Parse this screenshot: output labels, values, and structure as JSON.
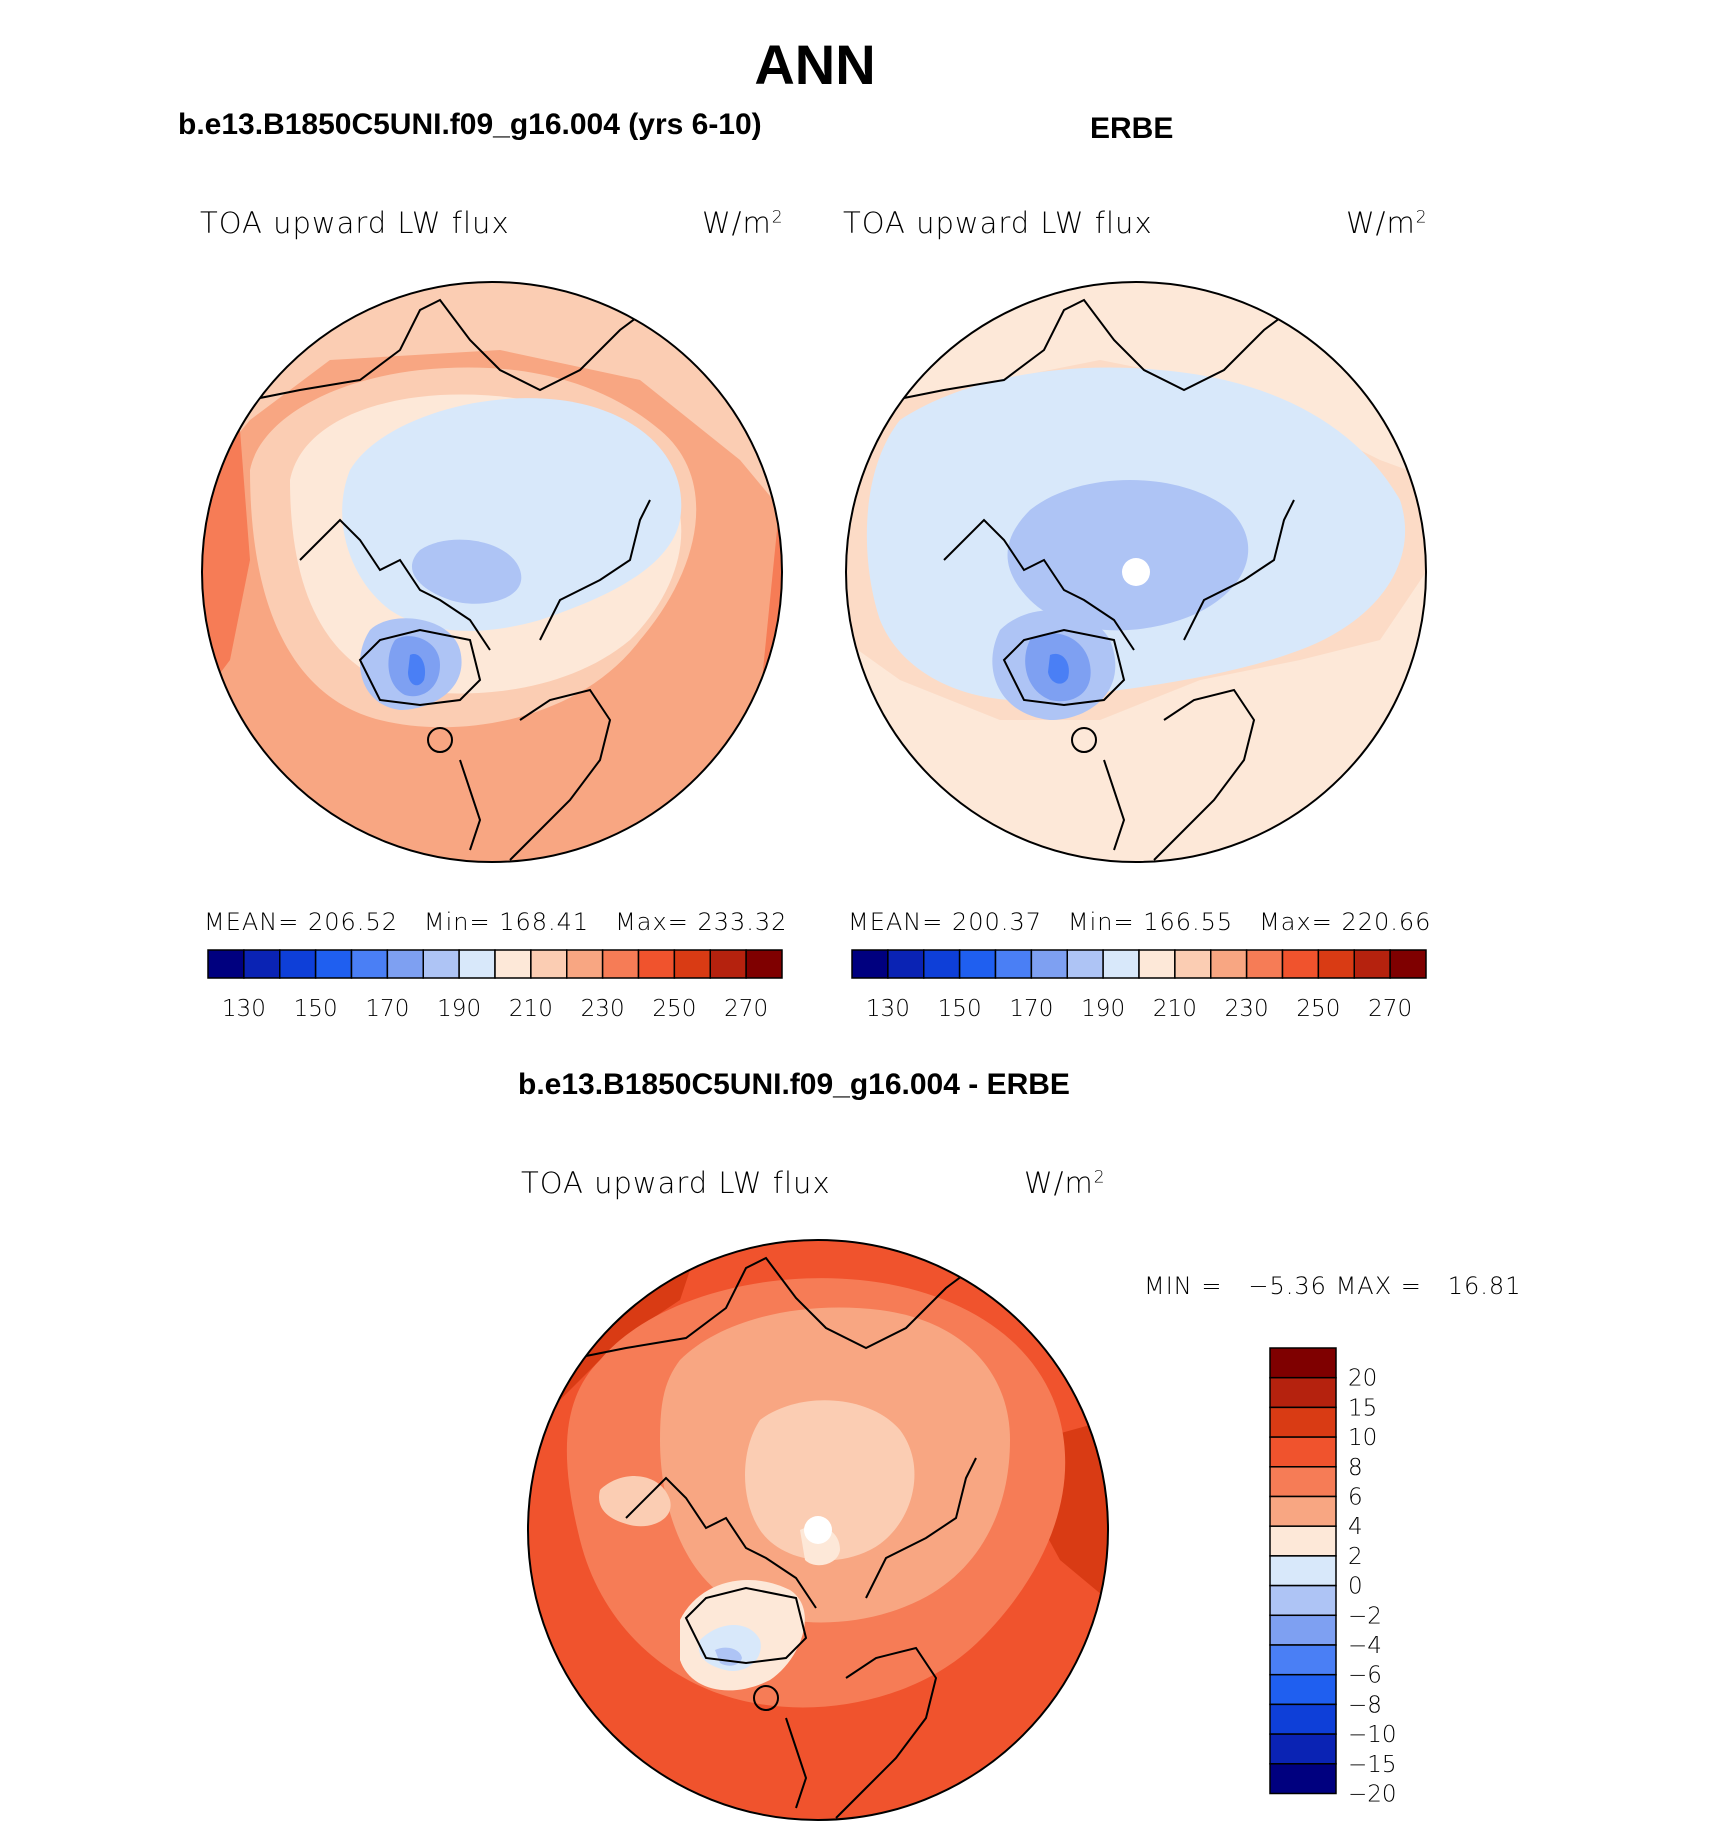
{
  "figure": {
    "season": "ANN",
    "panel1": {
      "title": "b.e13.B1850C5UNI.f09_g16.004 (yrs 6-10)",
      "variable": "TOA upward LW flux",
      "units_base": "W/m",
      "units_exp": "2",
      "stats": {
        "mean_label": "MEAN=",
        "mean": "206.52",
        "min_label": "Min=",
        "min": "168.41",
        "max_label": "Max=",
        "max": "233.32"
      }
    },
    "panel2": {
      "title": "ERBE",
      "variable": "TOA upward LW flux",
      "units_base": "W/m",
      "units_exp": "2",
      "stats": {
        "mean_label": "MEAN=",
        "mean": "200.37",
        "min_label": "Min=",
        "min": "166.55",
        "max_label": "Max=",
        "max": "220.66"
      }
    },
    "diff": {
      "title": "b.e13.B1850C5UNI.f09_g16.004 - ERBE",
      "variable": "TOA upward LW flux",
      "units_base": "W/m",
      "units_exp": "2",
      "min_label": "MIN =",
      "min": "−5.36",
      "max_label": "MAX =",
      "max": "16.81"
    },
    "colorbar_abs": {
      "colors": [
        "#00007f",
        "#0a23b4",
        "#0e3fd8",
        "#1f5ff0",
        "#4a7ff5",
        "#7ea0f2",
        "#aec4f5",
        "#d8e8fa",
        "#fde8d8",
        "#fbcdb3",
        "#f8a682",
        "#f67c56",
        "#f0532d",
        "#d93b14",
        "#b5220e",
        "#7f0000"
      ],
      "tick_labels": [
        "130",
        "150",
        "170",
        "190",
        "210",
        "230",
        "250",
        "270"
      ]
    },
    "colorbar_diff": {
      "colors": [
        "#7f0000",
        "#b5220e",
        "#d93b14",
        "#f0532d",
        "#f67c56",
        "#f8a682",
        "#fde8d8",
        "#d8e8fa",
        "#aec4f5",
        "#7ea0f2",
        "#4a7ff5",
        "#1f5ff0",
        "#0e3fd8",
        "#0a23b4",
        "#00007f"
      ],
      "tick_labels": [
        "20",
        "15",
        "10",
        "8",
        "6",
        "4",
        "2",
        "0",
        "−2",
        "−4",
        "−6",
        "−8",
        "−10",
        "−15",
        "−20"
      ]
    }
  }
}
